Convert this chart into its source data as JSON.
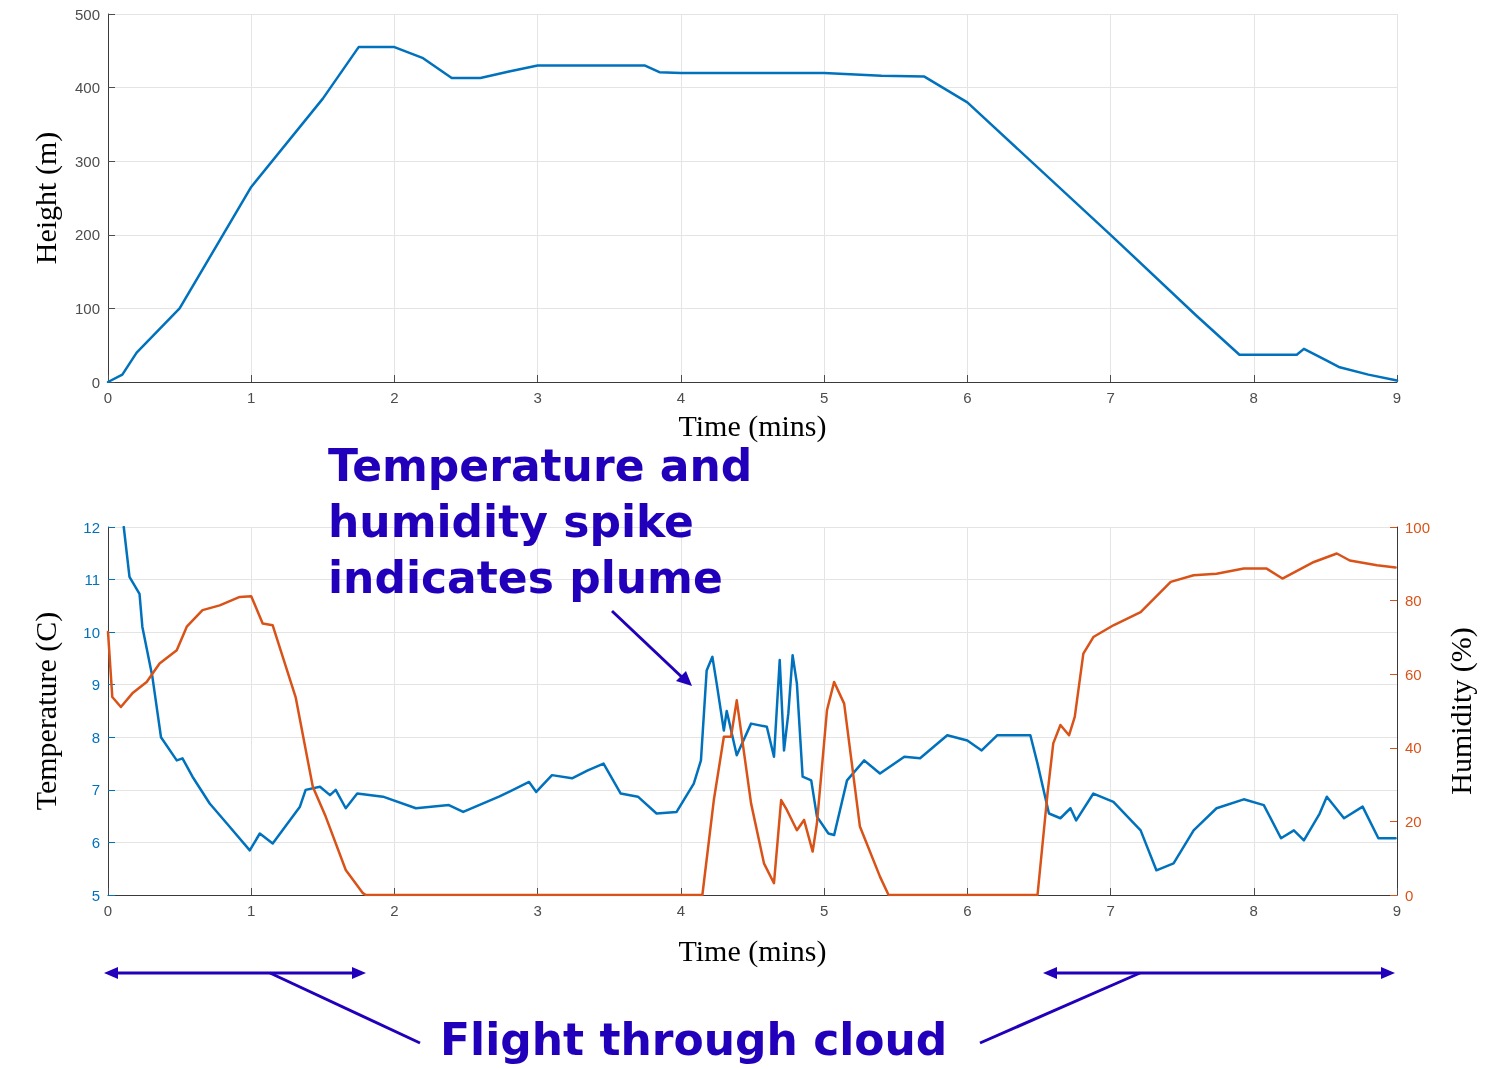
{
  "chart_data": [
    {
      "type": "line",
      "xlabel": "Time (mins)",
      "ylabel": "Height (m)",
      "xlim": [
        0,
        9
      ],
      "xticks": [
        0,
        1,
        2,
        3,
        4,
        5,
        6,
        7,
        8,
        9
      ],
      "ylim": [
        0,
        500
      ],
      "yticks": [
        0,
        100,
        200,
        300,
        400,
        500
      ],
      "grid": true,
      "marker": "none",
      "line_style": "solid",
      "series": [
        {
          "color": "#0072bd",
          "x": [
            0,
            0.1,
            0.2,
            0.5,
            1,
            1.5,
            1.75,
            2,
            2.2,
            2.4,
            2.6,
            2.8,
            3,
            3.5,
            3.75,
            3.85,
            4,
            5,
            5.4,
            5.7,
            6,
            7,
            7.6,
            7.9,
            8.3,
            8.35,
            8.5,
            8.6,
            8.8,
            9
          ],
          "values": [
            0,
            10,
            40,
            100,
            265,
            385,
            455,
            455,
            440,
            413,
            413,
            422,
            430,
            430,
            430,
            421,
            420,
            420,
            416,
            415,
            380,
            200,
            90,
            37,
            37,
            45,
            30,
            20,
            10,
            2
          ]
        }
      ]
    },
    {
      "type": "line",
      "xlabel": "Time (mins)",
      "ylabel": "Temperature (C)",
      "y2label": "Humidity (%)",
      "xlim": [
        0,
        9
      ],
      "xticks": [
        0,
        1,
        2,
        3,
        4,
        5,
        6,
        7,
        8,
        9
      ],
      "ylim": [
        5,
        12
      ],
      "yticks": [
        5,
        6,
        7,
        8,
        9,
        10,
        11,
        12
      ],
      "y2lim": [
        0,
        100
      ],
      "y2ticks": [
        0,
        20,
        40,
        60,
        80,
        100
      ],
      "grid": true,
      "marker": "none",
      "line_style": "solid",
      "annotations": [
        "Temperature and humidity spike indicates plume",
        "Flight through cloud"
      ],
      "series": [
        {
          "color": "#0072bd",
          "x": [
            0.11,
            0.15,
            0.22,
            0.24,
            0.31,
            0.37,
            0.48,
            0.52,
            0.59,
            0.71,
            0.83,
            0.99,
            1.06,
            1.15,
            1.34,
            1.38,
            1.48,
            1.55,
            1.59,
            1.66,
            1.74,
            1.92,
            2.15,
            2.38,
            2.48,
            2.73,
            2.94,
            2.99,
            3.1,
            3.24,
            3.35,
            3.46,
            3.58,
            3.7,
            3.83,
            3.97,
            4.09,
            4.14,
            4.18,
            4.22,
            4.25,
            4.3,
            4.32,
            4.39,
            4.49,
            4.6,
            4.65,
            4.69,
            4.72,
            4.75,
            4.78,
            4.81,
            4.85,
            4.91,
            4.95,
            5.03,
            5.07,
            5.16,
            5.28,
            5.39,
            5.56,
            5.67,
            5.86,
            6.0,
            6.1,
            6.21,
            6.44,
            6.49,
            6.57,
            6.65,
            6.72,
            6.76,
            6.88,
            7.02,
            7.21,
            7.32,
            7.44,
            7.58,
            7.74,
            7.93,
            8.07,
            8.19,
            8.28,
            8.35,
            8.46,
            8.51,
            8.63,
            8.76,
            8.87,
            8.99
          ],
          "values": [
            12,
            11.05,
            10.73,
            10.1,
            9.15,
            8.0,
            7.56,
            7.6,
            7.25,
            6.74,
            6.36,
            5.85,
            6.17,
            5.98,
            6.68,
            7.0,
            7.06,
            6.9,
            7.0,
            6.65,
            6.93,
            6.87,
            6.65,
            6.71,
            6.58,
            6.87,
            7.15,
            6.96,
            7.28,
            7.22,
            7.37,
            7.5,
            6.93,
            6.87,
            6.55,
            6.58,
            7.12,
            7.56,
            9.27,
            9.53,
            9.02,
            8.13,
            8.5,
            7.66,
            8.26,
            8.2,
            7.63,
            9.47,
            7.75,
            8.45,
            9.56,
            9.02,
            7.25,
            7.18,
            6.49,
            6.17,
            6.14,
            7.18,
            7.56,
            7.31,
            7.63,
            7.6,
            8.04,
            7.94,
            7.75,
            8.04,
            8.04,
            7.5,
            6.55,
            6.46,
            6.65,
            6.42,
            6.93,
            6.77,
            6.23,
            5.47,
            5.6,
            6.23,
            6.65,
            6.82,
            6.71,
            6.08,
            6.23,
            6.04,
            6.55,
            6.87,
            6.46,
            6.68,
            6.08,
            6.08
          ]
        },
        {
          "color": "#d95319",
          "axis": "y2",
          "x": [
            0,
            0.03,
            0.09,
            0.17,
            0.27,
            0.36,
            0.48,
            0.55,
            0.66,
            0.78,
            0.92,
            1.0,
            1.08,
            1.15,
            1.31,
            1.43,
            1.52,
            1.66,
            1.78,
            1.8,
            4.15,
            4.23,
            4.3,
            4.35,
            4.39,
            4.49,
            4.58,
            4.65,
            4.7,
            4.74,
            4.81,
            4.86,
            4.92,
            4.95,
            5.02,
            5.07,
            5.14,
            5.25,
            5.39,
            5.45,
            6.49,
            6.56,
            6.6,
            6.65,
            6.71,
            6.75,
            6.81,
            6.88,
            7.02,
            7.21,
            7.42,
            7.58,
            7.74,
            7.93,
            8.09,
            8.2,
            8.42,
            8.58,
            8.67,
            8.86,
            8.99
          ],
          "values": [
            71.5,
            53.8,
            51.1,
            54.8,
            57.9,
            62.9,
            66.5,
            72.9,
            77.4,
            78.7,
            81,
            81.2,
            73.8,
            73.3,
            53.8,
            29.4,
            21.3,
            6.8,
            0.5,
            0,
            0,
            25.8,
            43,
            43,
            52.9,
            24.9,
            8.6,
            3.2,
            25.8,
            23.1,
            17.6,
            20.4,
            11.8,
            19.5,
            50.2,
            57.9,
            52,
            18.6,
            5,
            0,
            0,
            27.6,
            41.2,
            46.2,
            43.4,
            48.4,
            65.6,
            70.1,
            73.3,
            76.9,
            85.1,
            86.9,
            87.3,
            88.7,
            88.7,
            86,
            90.5,
            92.8,
            90.9,
            89.6,
            89
          ]
        }
      ]
    }
  ]
}
